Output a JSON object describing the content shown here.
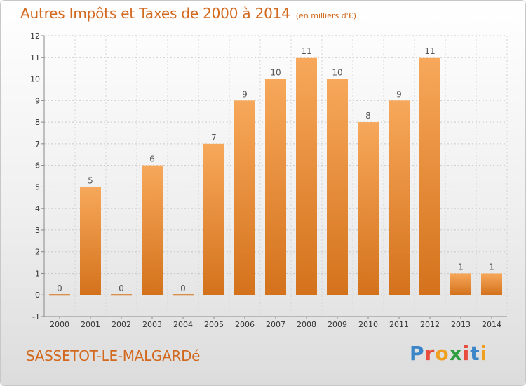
{
  "header": {
    "title": "Autres Impôts et Taxes de 2000 à 2014",
    "subtitle": "(en milliers d'€)"
  },
  "footer": {
    "commune": "SASSETOT-LE-MALGARDé",
    "logo": [
      "P",
      "r",
      "o",
      "x",
      "i",
      "t",
      "i"
    ]
  },
  "colors": {
    "bar_light": "#f7a85a",
    "bar_dark": "#d4721c",
    "title": "#d2691e"
  },
  "chart_data": {
    "type": "bar",
    "title": "Autres Impôts et Taxes de 2000 à 2014",
    "subtitle": "(en milliers d'€)",
    "categories": [
      "2000",
      "2001",
      "2002",
      "2003",
      "2004",
      "2005",
      "2006",
      "2007",
      "2008",
      "2009",
      "2010",
      "2011",
      "2012",
      "2013",
      "2014"
    ],
    "values": [
      0,
      5,
      0,
      6,
      0,
      7,
      9,
      10,
      11,
      10,
      8,
      9,
      11,
      1,
      1
    ],
    "y_ticks": [
      "-1",
      "0",
      "1",
      "2",
      "3",
      "4",
      "5",
      "6",
      "7",
      "8",
      "9",
      "10",
      "11",
      "12"
    ],
    "ylim": [
      -1,
      12
    ],
    "grid": true,
    "legend": "none"
  }
}
